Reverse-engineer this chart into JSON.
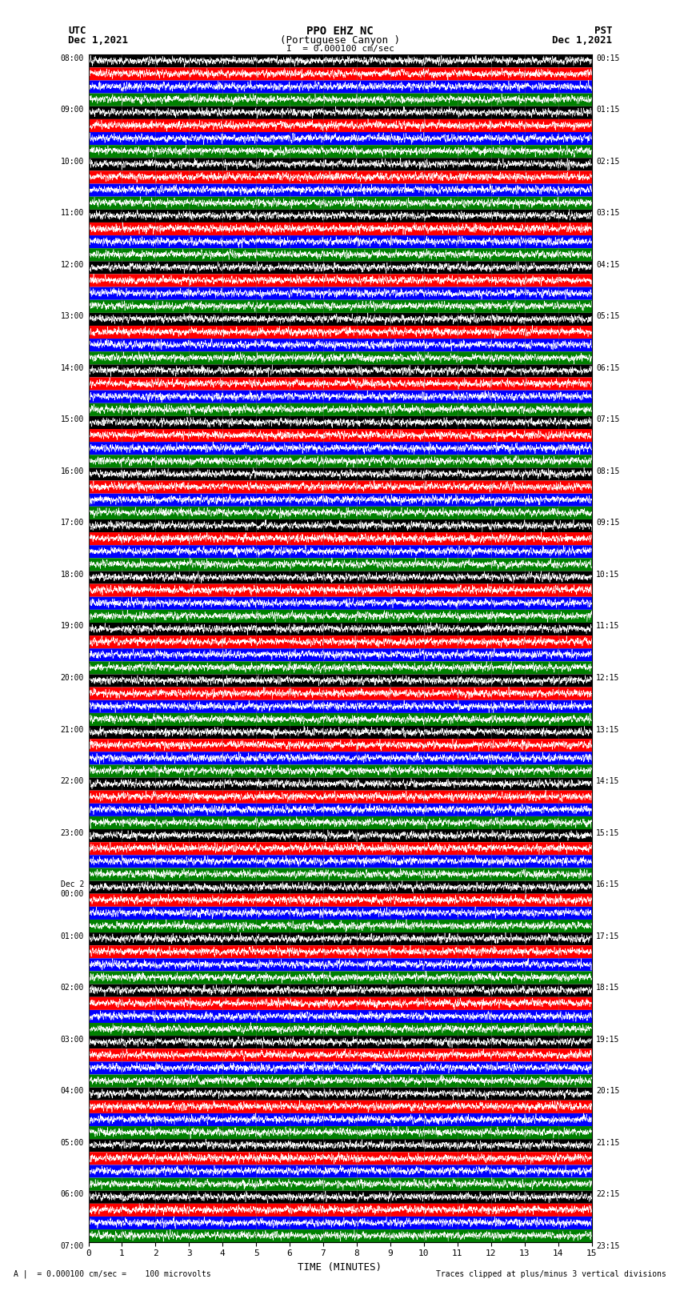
{
  "title_line1": "PPO EHZ NC",
  "title_line2": "(Portuguese Canyon )",
  "title_scale": "I  = 0.000100 cm/sec",
  "utc_label": "UTC",
  "utc_date": "Dec 1,2021",
  "pst_label": "PST",
  "pst_date": "Dec 1,2021",
  "xlabel": "TIME (MINUTES)",
  "footer_left": "A |  = 0.000100 cm/sec =    100 microvolts",
  "footer_right": "Traces clipped at plus/minus 3 vertical divisions",
  "xlim": [
    0,
    15
  ],
  "xticks": [
    0,
    1,
    2,
    3,
    4,
    5,
    6,
    7,
    8,
    9,
    10,
    11,
    12,
    13,
    14,
    15
  ],
  "n_rows": 92,
  "row_colors": [
    "black",
    "red",
    "blue",
    "green"
  ],
  "bg_color": "white",
  "title_fontsize": 10,
  "label_fontsize": 9,
  "tick_fontsize": 8,
  "left_times_utc": [
    "08:00",
    "",
    "",
    "",
    "09:00",
    "",
    "",
    "",
    "10:00",
    "",
    "",
    "",
    "11:00",
    "",
    "",
    "",
    "12:00",
    "",
    "",
    "",
    "13:00",
    "",
    "",
    "",
    "14:00",
    "",
    "",
    "",
    "15:00",
    "",
    "",
    "",
    "16:00",
    "",
    "",
    "",
    "17:00",
    "",
    "",
    "",
    "18:00",
    "",
    "",
    "",
    "19:00",
    "",
    "",
    "",
    "20:00",
    "",
    "",
    "",
    "21:00",
    "",
    "",
    "",
    "22:00",
    "",
    "",
    "",
    "23:00",
    "",
    "",
    "",
    "Dec 2\n00:00",
    "",
    "",
    "",
    "01:00",
    "",
    "",
    "",
    "02:00",
    "",
    "",
    "",
    "03:00",
    "",
    "",
    "",
    "04:00",
    "",
    "",
    "",
    "05:00",
    "",
    "",
    "",
    "06:00",
    "",
    "",
    "",
    "07:00",
    "",
    ""
  ],
  "right_times_pst": [
    "00:15",
    "",
    "",
    "",
    "01:15",
    "",
    "",
    "",
    "02:15",
    "",
    "",
    "",
    "03:15",
    "",
    "",
    "",
    "04:15",
    "",
    "",
    "",
    "05:15",
    "",
    "",
    "",
    "06:15",
    "",
    "",
    "",
    "07:15",
    "",
    "",
    "",
    "08:15",
    "",
    "",
    "",
    "09:15",
    "",
    "",
    "",
    "10:15",
    "",
    "",
    "",
    "11:15",
    "",
    "",
    "",
    "12:15",
    "",
    "",
    "",
    "13:15",
    "",
    "",
    "",
    "14:15",
    "",
    "",
    "",
    "15:15",
    "",
    "",
    "",
    "16:15",
    "",
    "",
    "",
    "17:15",
    "",
    "",
    "",
    "18:15",
    "",
    "",
    "",
    "19:15",
    "",
    "",
    "",
    "20:15",
    "",
    "",
    "",
    "21:15",
    "",
    "",
    "",
    "22:15",
    "",
    "",
    "",
    "23:15",
    "",
    ""
  ]
}
